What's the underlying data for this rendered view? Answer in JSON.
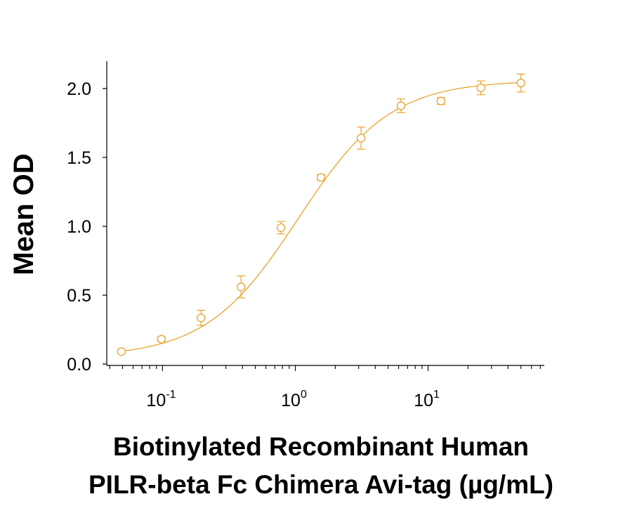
{
  "chart_data": {
    "type": "scatter",
    "title": "",
    "xlabel_lines": [
      "Biotinylated Recombinant Human",
      "PILR-beta Fc Chimera Avi-tag (µg/mL)"
    ],
    "ylabel": "Mean OD",
    "x_scale": "log",
    "xlim": [
      0.038,
      75
    ],
    "ylim": [
      0.0,
      2.2
    ],
    "y_ticks": [
      "0.0",
      "0.5",
      "1.0",
      "1.5",
      "2.0"
    ],
    "x_ticks": [
      {
        "base": "10",
        "exp": "-1",
        "value": 0.1
      },
      {
        "base": "10",
        "exp": "0",
        "value": 1
      },
      {
        "base": "10",
        "exp": "1",
        "value": 10
      }
    ],
    "grid": false,
    "series": [
      {
        "color": "#E89B1C",
        "marker": "open-circle",
        "fit": "4PL",
        "points": [
          {
            "x": 0.049,
            "y": 0.09,
            "err": 0.01
          },
          {
            "x": 0.098,
            "y": 0.18,
            "err": 0.015
          },
          {
            "x": 0.195,
            "y": 0.335,
            "err": 0.055
          },
          {
            "x": 0.39,
            "y": 0.56,
            "err": 0.08
          },
          {
            "x": 0.78,
            "y": 0.99,
            "err": 0.045
          },
          {
            "x": 1.56,
            "y": 1.355,
            "err": 0.02
          },
          {
            "x": 3.125,
            "y": 1.64,
            "err": 0.08
          },
          {
            "x": 6.25,
            "y": 1.875,
            "err": 0.05
          },
          {
            "x": 12.5,
            "y": 1.91,
            "err": 0.025
          },
          {
            "x": 25,
            "y": 2.005,
            "err": 0.05
          },
          {
            "x": 50,
            "y": 2.04,
            "err": 0.065
          }
        ]
      }
    ]
  }
}
